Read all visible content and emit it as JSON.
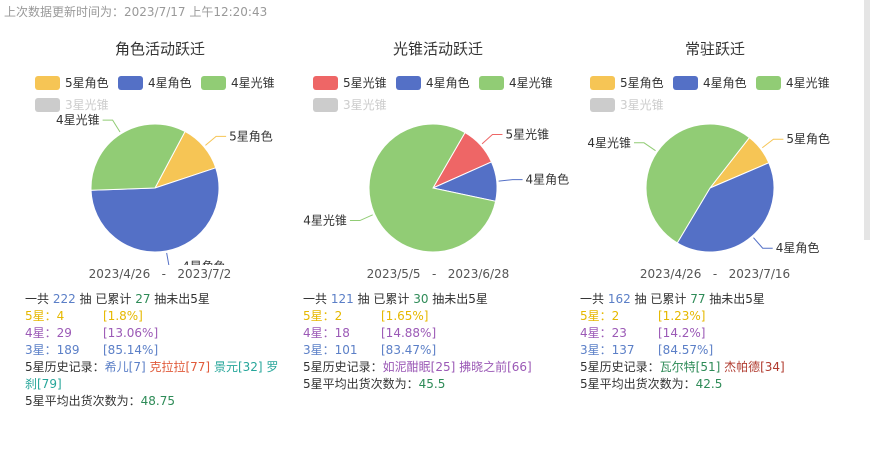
{
  "update_line": "上次数据更新时间为：2023/7/17 上午12:20:43",
  "colors": {
    "five_star_char": "#f6c555",
    "four_star_char": "#5470c6",
    "four_star_weapon": "#91cc75",
    "five_star_weapon": "#ee6666",
    "three_star_weapon": "#cccccc",
    "stat5": "#e6b800",
    "stat4": "#9b59b6",
    "stat3": "#5b7fc7",
    "count": "#2e8b57"
  },
  "panels": [
    {
      "title": "角色活动跃迁",
      "legend": [
        {
          "label": "5星角色",
          "color": "#f6c555",
          "off": false
        },
        {
          "label": "4星角色",
          "color": "#5470c6",
          "off": false
        },
        {
          "label": "4星光锥",
          "color": "#91cc75",
          "off": false
        },
        {
          "label": "3星光锥",
          "color": "#cccccc",
          "off": true
        }
      ],
      "chart_data": {
        "type": "pie",
        "slices": [
          {
            "name": "5星角色",
            "value": 4,
            "color": "#f6c555"
          },
          {
            "name": "4星角色",
            "value": 18,
            "color": "#5470c6"
          },
          {
            "name": "4星光锥",
            "value": 11,
            "color": "#91cc75"
          }
        ],
        "labels": [
          "5星角色",
          "4星角色",
          "4星光锥"
        ]
      },
      "date_start": "2023/4/26",
      "date_end": "2023/7/2",
      "total_prefix": "一共",
      "total": "222",
      "total_mid": "抽 已累计",
      "since": "27",
      "total_suffix": "抽未出5星",
      "s5_label": "5星：4",
      "s5_pct": "[1.8%]",
      "s4_label": "4星：29",
      "s4_pct": "[13.06%]",
      "s3_label": "3星：189",
      "s3_pct": "[85.14%]",
      "history_label": "5星历史记录：",
      "history": [
        {
          "name": "希儿[7]",
          "color": "#5b7fc7"
        },
        {
          "name": "克拉拉[77]",
          "color": "#e05a3a"
        },
        {
          "name": "景元[32]",
          "color": "#26a69a"
        },
        {
          "name": "罗刹[79]",
          "color": "#26a69a"
        }
      ],
      "avg_label": "5星平均出货次数为：",
      "avg": "48.75"
    },
    {
      "title": "光锥活动跃迁",
      "legend": [
        {
          "label": "5星光锥",
          "color": "#ee6666",
          "off": false
        },
        {
          "label": "4星角色",
          "color": "#5470c6",
          "off": false
        },
        {
          "label": "4星光锥",
          "color": "#91cc75",
          "off": false
        },
        {
          "label": "3星光锥",
          "color": "#cccccc",
          "off": true
        }
      ],
      "chart_data": {
        "type": "pie",
        "slices": [
          {
            "name": "5星光锥",
            "value": 2,
            "color": "#ee6666"
          },
          {
            "name": "4星角色",
            "value": 2,
            "color": "#5470c6"
          },
          {
            "name": "4星光锥",
            "value": 16,
            "color": "#91cc75"
          }
        ],
        "labels": [
          "5星光锥",
          "4星角色",
          "4星光锥"
        ]
      },
      "date_start": "2023/5/5",
      "date_end": "2023/6/28",
      "total_prefix": "一共",
      "total": "121",
      "total_mid": "抽 已累计",
      "since": "30",
      "total_suffix": "抽未出5星",
      "s5_label": "5星：2",
      "s5_pct": "[1.65%]",
      "s4_label": "4星：18",
      "s4_pct": "[14.88%]",
      "s3_label": "3星：101",
      "s3_pct": "[83.47%]",
      "history_label": "5星历史记录：",
      "history": [
        {
          "name": "如泥酣眠[25]",
          "color": "#9b59b6"
        },
        {
          "name": "拂晓之前[66]",
          "color": "#9b59b6"
        }
      ],
      "avg_label": "5星平均出货次数为：",
      "avg": "45.5"
    },
    {
      "title": "常驻跃迁",
      "legend": [
        {
          "label": "5星角色",
          "color": "#f6c555",
          "off": false
        },
        {
          "label": "4星角色",
          "color": "#5470c6",
          "off": false
        },
        {
          "label": "4星光锥",
          "color": "#91cc75",
          "off": false
        },
        {
          "label": "3星光锥",
          "color": "#cccccc",
          "off": true
        }
      ],
      "chart_data": {
        "type": "pie",
        "slices": [
          {
            "name": "5星角色",
            "value": 2,
            "color": "#f6c555"
          },
          {
            "name": "4星角色",
            "value": 10,
            "color": "#5470c6"
          },
          {
            "name": "4星光锥",
            "value": 13,
            "color": "#91cc75"
          }
        ],
        "labels": [
          "5星角色",
          "4星角色",
          "4星光锥"
        ]
      },
      "date_start": "2023/4/26",
      "date_end": "2023/7/16",
      "total_prefix": "一共",
      "total": "162",
      "total_mid": "抽 已累计",
      "since": "77",
      "total_suffix": "抽未出5星",
      "s5_label": "5星：2",
      "s5_pct": "[1.23%]",
      "s4_label": "4星：23",
      "s4_pct": "[14.2%]",
      "s3_label": "3星：137",
      "s3_pct": "[84.57%]",
      "history_label": "5星历史记录：",
      "history": [
        {
          "name": "瓦尔特[51]",
          "color": "#2e8b57"
        },
        {
          "name": "杰帕德[34]",
          "color": "#b03a2e"
        }
      ],
      "avg_label": "5星平均出货次数为：",
      "avg": "42.5"
    }
  ]
}
